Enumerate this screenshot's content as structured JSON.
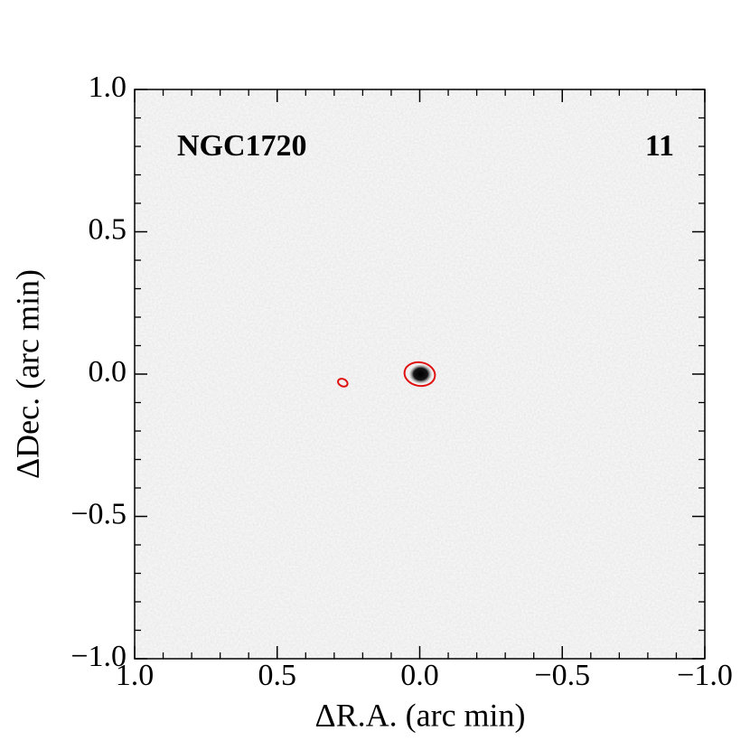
{
  "chart_data": {
    "type": "image",
    "title": "NGC1720",
    "annotation": "11",
    "xlabel": "ΔR.A. (arc min)",
    "ylabel": "ΔDec. (arc min)",
    "xlim": [
      1.0,
      -1.0
    ],
    "ylim": [
      -1.0,
      1.0
    ],
    "xticks": [
      {
        "value": 1.0,
        "label": "1.0"
      },
      {
        "value": 0.5,
        "label": "0.5"
      },
      {
        "value": 0.0,
        "label": "0.0"
      },
      {
        "value": -0.5,
        "label": "−0.5"
      },
      {
        "value": -1.0,
        "label": "−1.0"
      }
    ],
    "yticks": [
      {
        "value": -1.0,
        "label": "−1.0"
      },
      {
        "value": -0.5,
        "label": "−0.5"
      },
      {
        "value": 0.0,
        "label": "0.0"
      },
      {
        "value": 0.5,
        "label": "0.5"
      },
      {
        "value": 1.0,
        "label": "1.0"
      }
    ],
    "contour_color": "#e01010",
    "sources": {
      "x": [
        0.0,
        0.27
      ],
      "y": [
        0.0,
        -0.03
      ]
    }
  }
}
